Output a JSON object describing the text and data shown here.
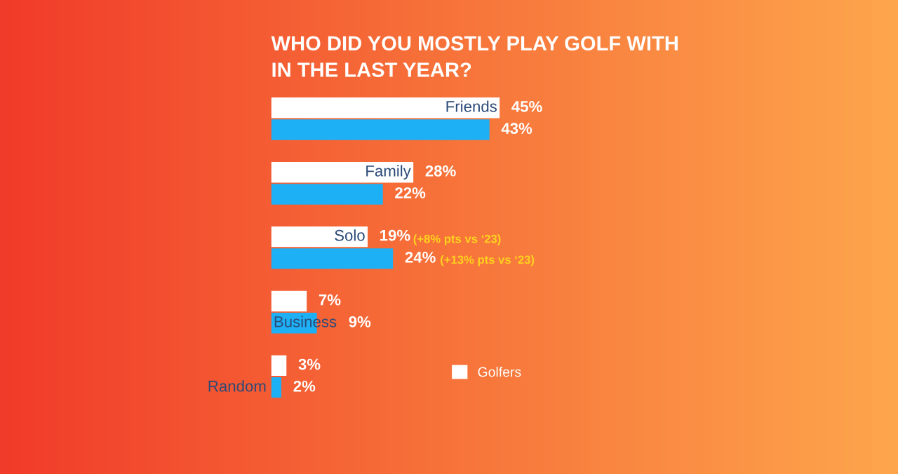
{
  "chart_data": {
    "type": "bar",
    "orientation": "horizontal",
    "title": "WHO DID YOU MOSTLY PLAY GOLF WITH\nIN THE LAST YEAR?",
    "categories": [
      "Friends",
      "Family",
      "Solo",
      "Business",
      "Random"
    ],
    "legend": "bottom",
    "series": [
      {
        "name": "Golfers",
        "color": "#ffffff",
        "values": [
          45,
          28,
          19,
          7,
          3
        ],
        "value_labels": [
          "45%",
          "28%",
          "19%",
          "7%",
          "3%"
        ]
      },
      {
        "color": "#1eb0f5",
        "values": [
          43,
          22,
          24,
          9,
          2
        ],
        "value_labels": [
          "43%",
          "22%",
          "24%",
          "9%",
          "2%"
        ]
      }
    ],
    "annotations": [
      "(+8% pts vs ‘23)",
      "(+13% pts vs ‘23)"
    ]
  }
}
